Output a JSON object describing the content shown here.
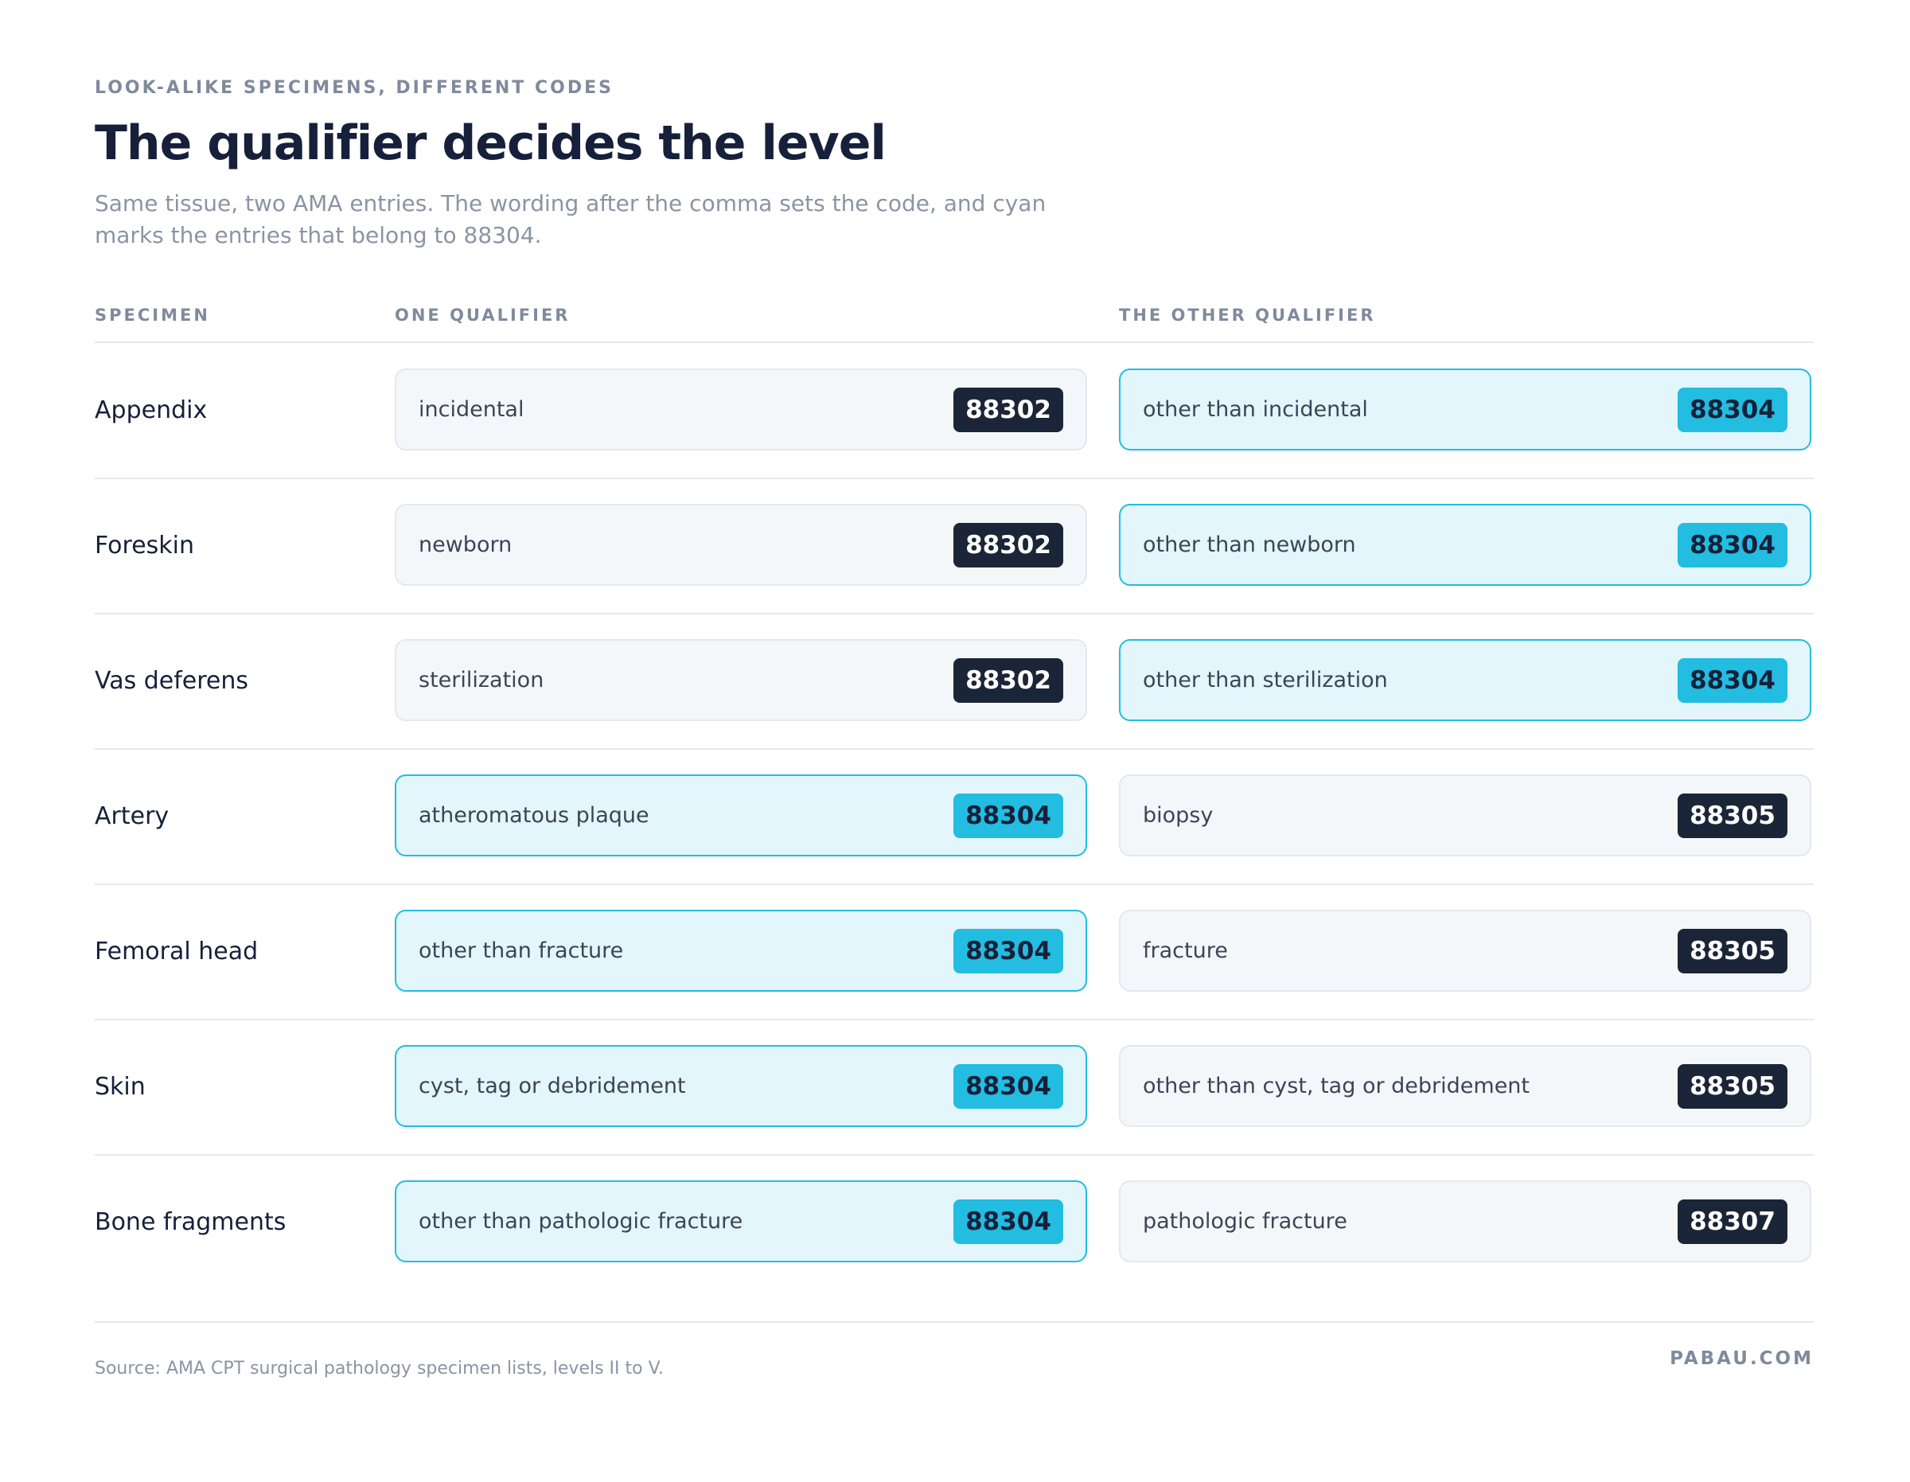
{
  "header": {
    "eyebrow": "LOOK-ALIKE SPECIMENS, DIFFERENT CODES",
    "title": "The qualifier decides the level",
    "subtitle": "Same tissue, two AMA entries. The wording after the comma sets the code, and cyan marks the entries that belong to 88304."
  },
  "table": {
    "columns": [
      "SPECIMEN",
      "ONE QUALIFIER",
      "THE OTHER QUALIFIER"
    ],
    "rows": [
      {
        "specimen": "Appendix",
        "cells": [
          {
            "qualifier": "incidental",
            "code": "88302",
            "highlight": false
          },
          {
            "qualifier": "other than incidental",
            "code": "88304",
            "highlight": true
          }
        ]
      },
      {
        "specimen": "Foreskin",
        "cells": [
          {
            "qualifier": "newborn",
            "code": "88302",
            "highlight": false
          },
          {
            "qualifier": "other than newborn",
            "code": "88304",
            "highlight": true
          }
        ]
      },
      {
        "specimen": "Vas deferens",
        "cells": [
          {
            "qualifier": "sterilization",
            "code": "88302",
            "highlight": false
          },
          {
            "qualifier": "other than sterilization",
            "code": "88304",
            "highlight": true
          }
        ]
      },
      {
        "specimen": "Artery",
        "cells": [
          {
            "qualifier": "atheromatous plaque",
            "code": "88304",
            "highlight": true
          },
          {
            "qualifier": "biopsy",
            "code": "88305",
            "highlight": false
          }
        ]
      },
      {
        "specimen": "Femoral head",
        "cells": [
          {
            "qualifier": "other than fracture",
            "code": "88304",
            "highlight": true
          },
          {
            "qualifier": "fracture",
            "code": "88305",
            "highlight": false
          }
        ]
      },
      {
        "specimen": "Skin",
        "cells": [
          {
            "qualifier": "cyst, tag or debridement",
            "code": "88304",
            "highlight": true
          },
          {
            "qualifier": "other than cyst, tag or debridement",
            "code": "88305",
            "highlight": false
          }
        ]
      },
      {
        "specimen": "Bone fragments",
        "cells": [
          {
            "qualifier": "other than pathologic fracture",
            "code": "88304",
            "highlight": true
          },
          {
            "qualifier": "pathologic fracture",
            "code": "88307",
            "highlight": false
          }
        ]
      }
    ]
  },
  "footer": {
    "source": "Source: AMA CPT surgical pathology specimen lists, levels II to V.",
    "brand": "PABAU.COM"
  }
}
